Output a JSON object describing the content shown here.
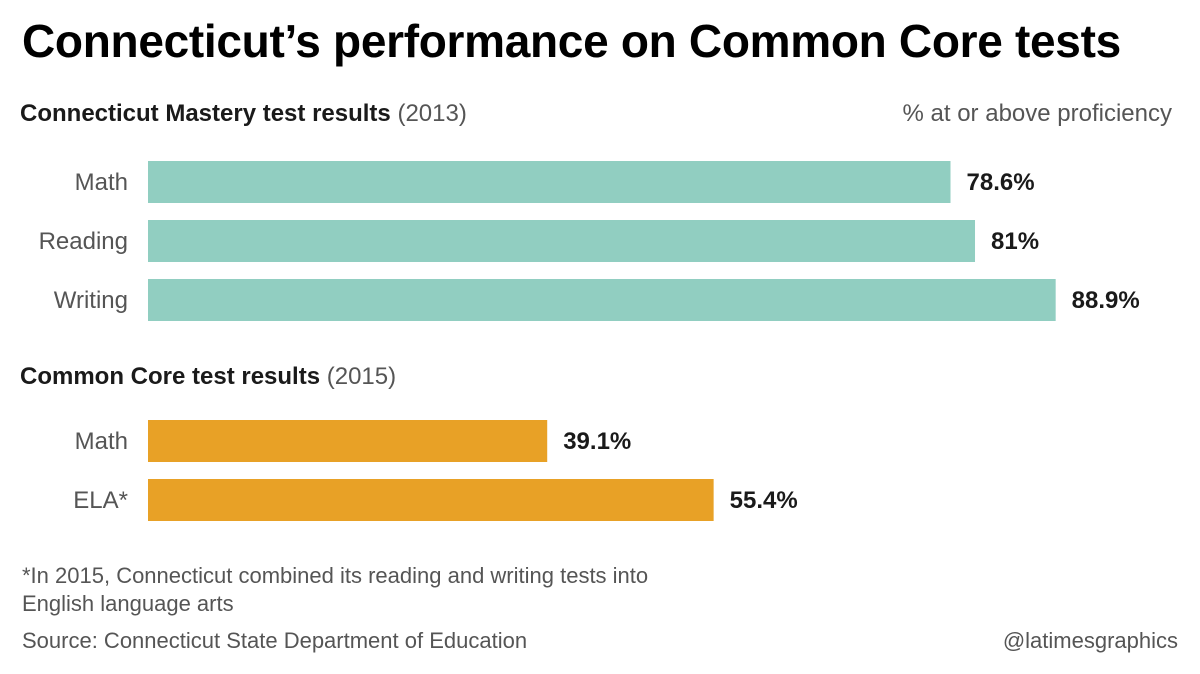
{
  "title": "Connecticut’s performance on Common Core tests",
  "unit_label": "% at or above proficiency",
  "footnote": "*In 2015, Connecticut combined its reading and writing tests into English language arts",
  "source": "Source: Connecticut State Department of Education",
  "credit": "@latimesgraphics",
  "sections": [
    {
      "name": "Connecticut Mastery test results",
      "year": "(2013)"
    },
    {
      "name": "Common Core test results",
      "year": "(2015)"
    }
  ],
  "chart_data": [
    {
      "type": "bar",
      "orientation": "horizontal",
      "title": "Connecticut Mastery test results (2013)",
      "categories": [
        "Math",
        "Reading",
        "Writing"
      ],
      "values": [
        78.6,
        81,
        88.9
      ],
      "value_labels": [
        "78.6%",
        "81%",
        "88.9%"
      ],
      "color": "#91cec1",
      "xlim": [
        0,
        100
      ],
      "grid": false
    },
    {
      "type": "bar",
      "orientation": "horizontal",
      "title": "Common Core test results (2015)",
      "categories": [
        "Math",
        "ELA*"
      ],
      "values": [
        39.1,
        55.4
      ],
      "value_labels": [
        "39.1%",
        "55.4%"
      ],
      "color": "#e8a126",
      "xlim": [
        0,
        100
      ],
      "grid": false
    }
  ]
}
